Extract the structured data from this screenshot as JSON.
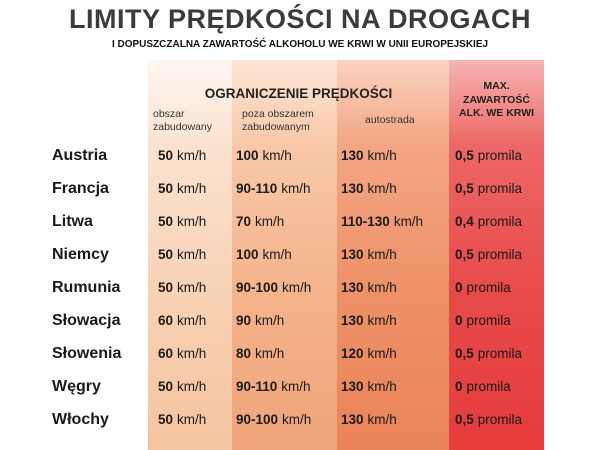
{
  "title": "LIMITY PRĘDKOŚCI NA DROGACH",
  "subtitle": "I DOPUSZCZALNA ZAWARTOŚĆ ALKOHOLU WE KRWI W UNII EUROPEJSKIEJ",
  "header": {
    "speed_group": "OGRANICZENIE PRĘDKOŚCI",
    "col1_line1": "obszar",
    "col1_line2": "zabudowany",
    "col2_line1": "poza obszarem",
    "col2_line2": "zabudowanym",
    "col3": "autostrada",
    "alc_line1": "MAX.",
    "alc_line2": "ZAWARTOŚĆ",
    "alc_line3": "ALK. WE KRWI"
  },
  "rows": [
    {
      "country": "Austria",
      "c1": "50",
      "c1u": "km/h",
      "c2": "100",
      "c2u": "km/h",
      "c3": "130",
      "c3u": "km/h",
      "alc": "0,5",
      "alcu": "promila"
    },
    {
      "country": "Francja",
      "c1": "50",
      "c1u": "km/h",
      "c2": "90-110",
      "c2u": "km/h",
      "c3": "130",
      "c3u": "km/h",
      "alc": "0,5",
      "alcu": "promila"
    },
    {
      "country": "Litwa",
      "c1": "50",
      "c1u": "km/h",
      "c2": "70",
      "c2u": "km/h",
      "c3": "110-130",
      "c3u": "km/h",
      "alc": "0,4",
      "alcu": "promila"
    },
    {
      "country": "Niemcy",
      "c1": "50",
      "c1u": "km/h",
      "c2": "100",
      "c2u": "km/h",
      "c3": "130",
      "c3u": "km/h",
      "alc": "0,5",
      "alcu": "promila"
    },
    {
      "country": "Rumunia",
      "c1": "50",
      "c1u": "km/h",
      "c2": "90-100",
      "c2u": "km/h",
      "c3": "130",
      "c3u": "km/h",
      "alc": "0",
      "alcu": "promila"
    },
    {
      "country": "Słowacja",
      "c1": "60",
      "c1u": "km/h",
      "c2": "90",
      "c2u": "km/h",
      "c3": "130",
      "c3u": "km/h",
      "alc": "0",
      "alcu": "promila"
    },
    {
      "country": "Słowenia",
      "c1": "60",
      "c1u": "km/h",
      "c2": "80",
      "c2u": "km/h",
      "c3": "120",
      "c3u": "km/h",
      "alc": "0,5",
      "alcu": "promila"
    },
    {
      "country": "Węgry",
      "c1": "50",
      "c1u": "km/h",
      "c2": "90-110",
      "c2u": "km/h",
      "c3": "130",
      "c3u": "km/h",
      "alc": "0",
      "alcu": "promila"
    },
    {
      "country": "Włochy",
      "c1": "50",
      "c1u": "km/h",
      "c2": "90-100",
      "c2u": "km/h",
      "c3": "130",
      "c3u": "km/h",
      "alc": "0,5",
      "alcu": "promila"
    }
  ]
}
